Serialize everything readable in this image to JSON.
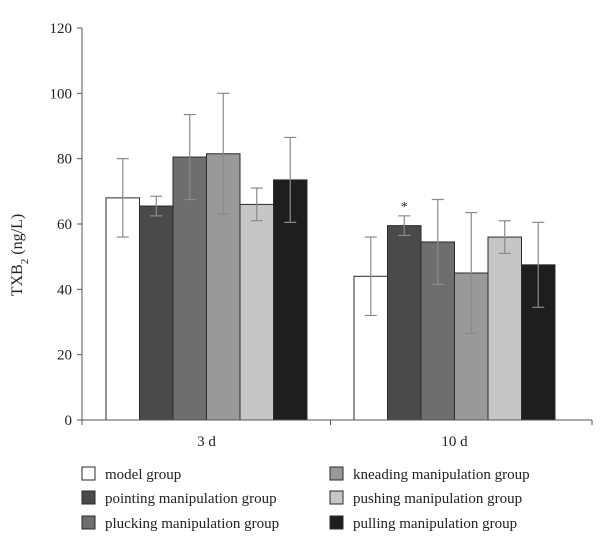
{
  "chart_data": {
    "type": "bar",
    "ylabel_main": "TXB",
    "ylabel_sub": "2",
    "ylabel_unit": " (ng/L)",
    "ylim": [
      0,
      120
    ],
    "yticks": [
      0,
      20,
      40,
      60,
      80,
      100,
      120
    ],
    "grid": false,
    "legend_position": "bottom",
    "categories": [
      "3 d",
      "10 d"
    ],
    "series": [
      {
        "name": "model group",
        "values": [
          68,
          44
        ],
        "errors": [
          12,
          12
        ],
        "color": "#ffffff"
      },
      {
        "name": "pointing manipulation group",
        "values": [
          65.5,
          59.5
        ],
        "errors": [
          3,
          3
        ],
        "color": "#4a4a4a"
      },
      {
        "name": "plucking manipulation group",
        "values": [
          80.5,
          54.5
        ],
        "errors": [
          13,
          13
        ],
        "color": "#6e6e6e"
      },
      {
        "name": "kneading manipulation group",
        "values": [
          81.5,
          45
        ],
        "errors": [
          18.5,
          18.5
        ],
        "color": "#999999"
      },
      {
        "name": "pushing manipulation group",
        "values": [
          66,
          56
        ],
        "errors": [
          5,
          5
        ],
        "color": "#c6c6c6"
      },
      {
        "name": "pulling manipulation group",
        "values": [
          73.5,
          47.5
        ],
        "errors": [
          13,
          13
        ],
        "color": "#1e1e1e"
      }
    ],
    "annotations": [
      {
        "text": "*",
        "category": "10 d",
        "series": 1
      }
    ]
  }
}
